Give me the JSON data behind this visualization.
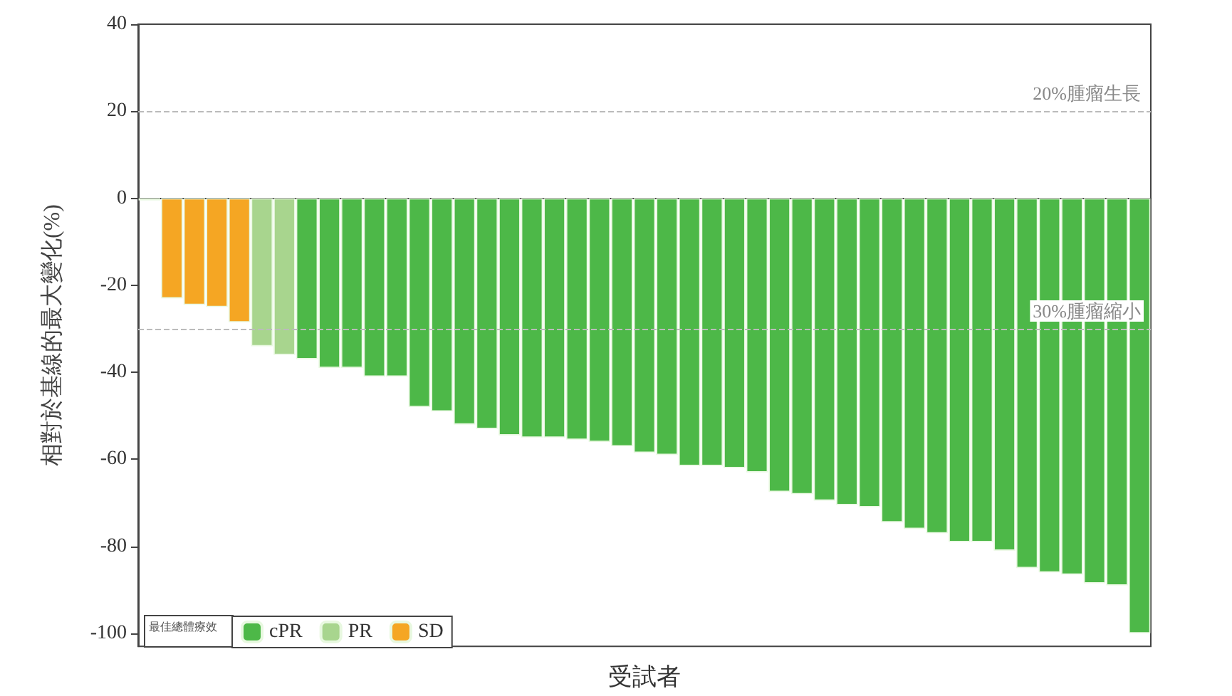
{
  "chart_data": {
    "type": "bar",
    "stacked": true,
    "xlabel": "受試者",
    "ylabel": "相對於基線的最大變化(%)",
    "legend_title": "最佳總體療效",
    "legend": "bottom left",
    "grid": false,
    "categories": [
      null,
      null,
      null,
      null,
      null,
      null,
      null,
      null,
      null,
      null,
      null,
      null,
      null,
      null,
      null,
      null,
      null,
      null,
      null,
      null,
      null,
      null,
      null,
      null,
      null,
      null,
      null,
      null,
      null,
      null,
      null,
      null,
      null,
      null,
      null,
      null,
      null,
      null,
      null,
      null,
      null,
      null,
      null,
      null,
      null
    ],
    "series": [
      {
        "name": "cPR",
        "color": "#4db848",
        "values": [
          null,
          null,
          null,
          null,
          null,
          null,
          null,
          -37,
          -39,
          -39,
          -41,
          -41,
          -48,
          -49,
          -52,
          -53,
          -54.5,
          -55,
          -55,
          -55.5,
          -56,
          -57,
          -58.5,
          -59,
          -61.5,
          -61.5,
          -62,
          -63,
          -67.5,
          -68,
          -69.5,
          -70.5,
          -71,
          -74.5,
          -76,
          -77,
          -79,
          -79,
          -81,
          -85,
          -86,
          -86.5,
          -88.5,
          -89,
          -100
        ]
      },
      {
        "name": "PR",
        "color": "#a8d58e",
        "values": [
          null,
          null,
          null,
          null,
          null,
          -34,
          -36,
          null,
          null,
          null,
          null,
          null,
          null,
          null,
          null,
          null,
          null,
          null,
          null,
          null,
          null,
          null,
          null,
          null,
          null,
          null,
          null,
          null,
          null,
          null,
          null,
          null,
          null,
          null,
          null,
          null,
          null,
          null,
          null,
          null,
          null,
          null,
          null,
          null,
          null
        ]
      },
      {
        "name": "SD",
        "color": "#f5a623",
        "values": [
          -0.5,
          -23,
          -24.5,
          -25,
          -28.5,
          null,
          null,
          null,
          null,
          null,
          null,
          null,
          null,
          null,
          null,
          null,
          null,
          null,
          null,
          null,
          null,
          null,
          null,
          null,
          null,
          null,
          null,
          null,
          null,
          null,
          null,
          null,
          null,
          null,
          null,
          null,
          null,
          null,
          null,
          null,
          null,
          null,
          null,
          null,
          null
        ]
      }
    ],
    "ylim": [
      -103,
      40
    ],
    "yticks": [
      -100,
      -80,
      -60,
      -40,
      -20,
      0,
      20,
      40
    ],
    "ref_lines": [
      {
        "axis": "y",
        "value": 20,
        "label": "20%腫瘤生長",
        "color": "#bbbbbb",
        "line_style": "dashed"
      },
      {
        "axis": "y",
        "value": -30,
        "label": "30%腫瘤縮小",
        "color": "#bbbbbb",
        "line_style": "dashed"
      }
    ]
  }
}
